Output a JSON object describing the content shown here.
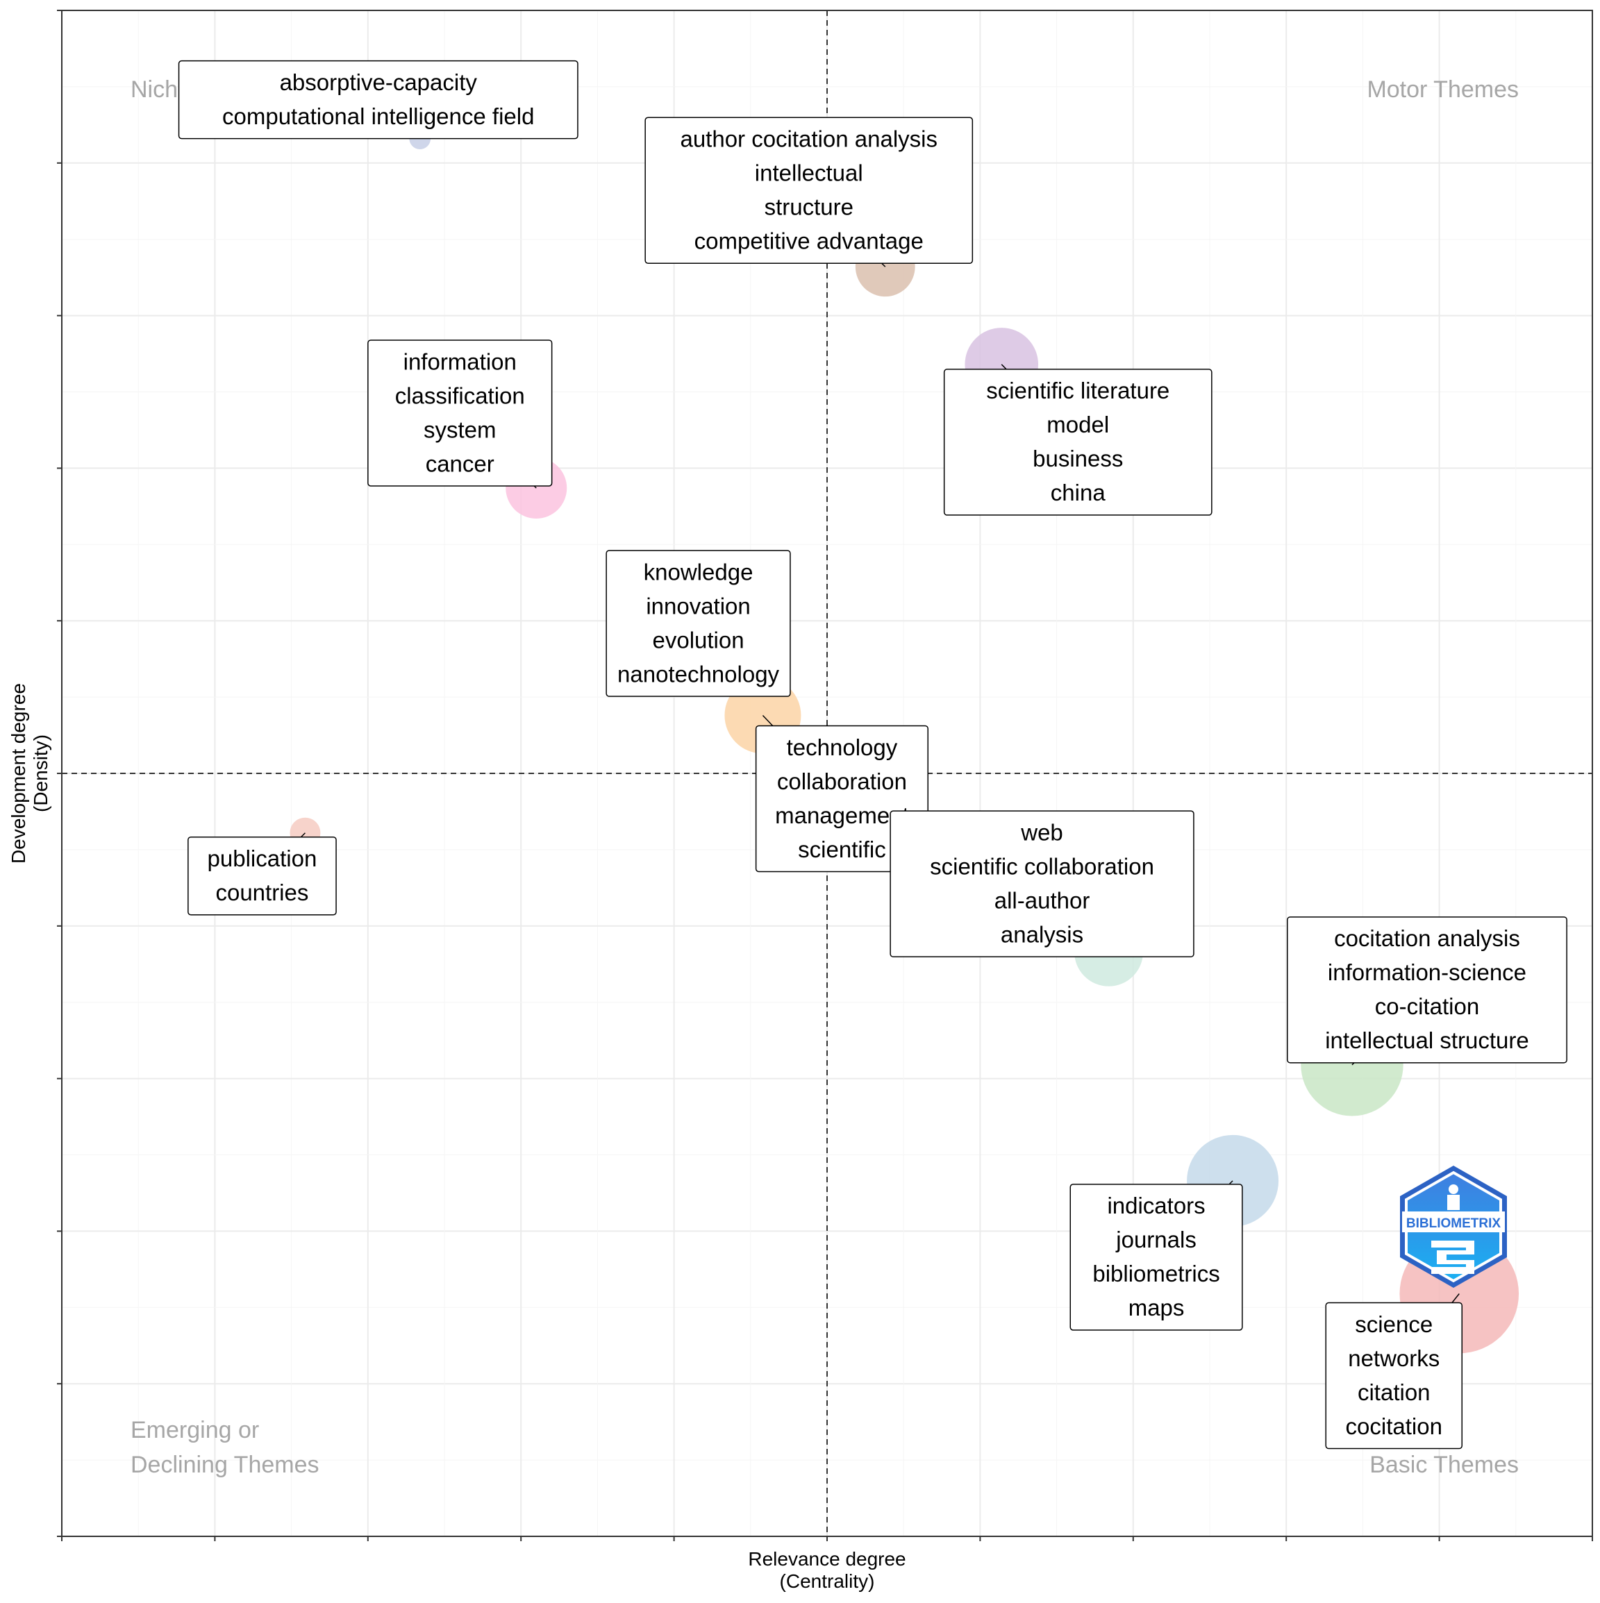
{
  "chart_data": {
    "type": "scatter",
    "title": "",
    "xlabel": "Relevance degree\n(Centrality)",
    "ylabel": "Development degree\n(Density)",
    "xlim": [
      0,
      100
    ],
    "ylim": [
      0,
      100
    ],
    "xref": 50,
    "yref": 50,
    "grid": true,
    "legend": "none",
    "quadrant_labels": {
      "top_left": "Niche Themes",
      "top_right": "Motor Themes",
      "bottom_left": [
        "Emerging or",
        "Declining Themes"
      ],
      "bottom_right": "Basic Themes"
    },
    "logo_text": "BIBLIOMETRIX",
    "clusters": [
      {
        "x": 23.4,
        "y": 91.6,
        "size": 1.4,
        "color": "#c7cfe6",
        "terms": [
          "absorptive-capacity",
          "computational intelligence field"
        ]
      },
      {
        "x": 53.8,
        "y": 83.2,
        "size": 3.9,
        "color": "#dbbfae",
        "terms": [
          "author cocitation analysis",
          "intellectual",
          "structure",
          "competitive advantage"
        ]
      },
      {
        "x": 61.4,
        "y": 76.8,
        "size": 4.8,
        "color": "#d8c2e2",
        "terms": [
          "scientific literature",
          "model",
          "business",
          "china"
        ]
      },
      {
        "x": 31.0,
        "y": 68.7,
        "size": 4.0,
        "color": "#fbc3df",
        "terms": [
          "information",
          "classification",
          "system",
          "cancer"
        ]
      },
      {
        "x": 38.5,
        "y": 62.1,
        "size": 4.0,
        "color": "#dcdcdc",
        "terms": [
          "knowledge",
          "innovation",
          "evolution",
          "nanotechnology"
        ]
      },
      {
        "x": 45.8,
        "y": 53.8,
        "size": 5.0,
        "color": "#fcd3a6",
        "terms": [
          "technology",
          "collaboration",
          "management",
          "scientific"
        ]
      },
      {
        "x": 15.9,
        "y": 46.1,
        "size": 2.0,
        "color": "#f6cbc2",
        "terms": [
          "publication",
          "countries"
        ]
      },
      {
        "x": 68.4,
        "y": 38.3,
        "size": 4.5,
        "color": "#cfeadf",
        "terms": [
          "web",
          "scientific collaboration",
          "all-author",
          "analysis"
        ]
      },
      {
        "x": 84.3,
        "y": 30.9,
        "size": 6.7,
        "color": "#c9e6c5",
        "terms": [
          "cocitation analysis",
          "information-science",
          "co-citation",
          "intellectual structure"
        ]
      },
      {
        "x": 76.5,
        "y": 23.3,
        "size": 6.0,
        "color": "#c4d9ea",
        "terms": [
          "indicators",
          "journals",
          "bibliometrics",
          "maps"
        ]
      },
      {
        "x": 91.3,
        "y": 15.9,
        "size": 7.8,
        "color": "#f5b8b8",
        "terms": [
          "science",
          "networks",
          "citation",
          "cocitation"
        ]
      }
    ]
  }
}
